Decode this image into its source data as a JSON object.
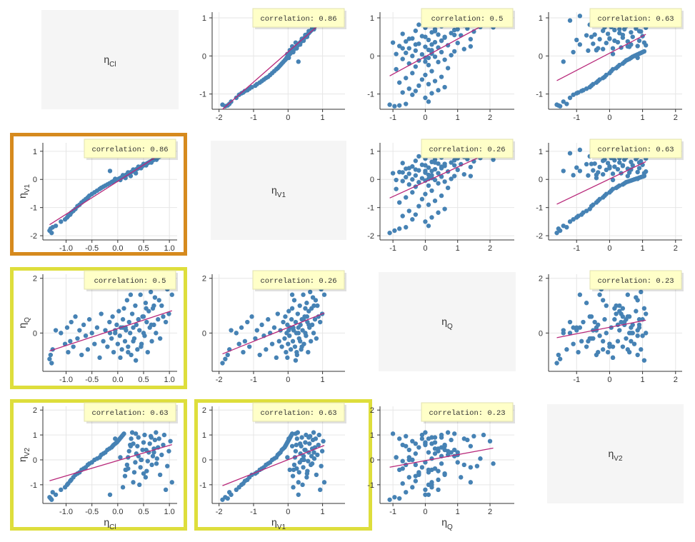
{
  "chart_data": {
    "type": "scatter",
    "title": "",
    "variables": [
      {
        "key": "Cl",
        "label": "η",
        "sub": "Cl",
        "range": [
          -1.45,
          1.15
        ],
        "ticks": [
          -1.0,
          -0.5,
          0.0,
          0.5,
          1.0
        ],
        "tick_labels": [
          "-1.0",
          "-0.5",
          "0.0",
          "0.5",
          "1.0"
        ],
        "y_range": [
          -1.4,
          1.15
        ],
        "y_ticks": [
          -1,
          0,
          1
        ],
        "y_tick_labels": [
          "-1",
          "0",
          "1"
        ]
      },
      {
        "key": "V1",
        "label": "η",
        "sub": "V1",
        "range": [
          -2.2,
          1.65
        ],
        "ticks": [
          -2,
          -1,
          0,
          1
        ],
        "tick_labels": [
          "-2",
          "-1",
          "0",
          "1"
        ],
        "y_range": [
          -2.15,
          1.3
        ],
        "y_ticks": [
          -2,
          -1,
          0,
          1
        ],
        "y_tick_labels": [
          "-2",
          "-1",
          "0",
          "1"
        ]
      },
      {
        "key": "Q",
        "label": "η",
        "sub": "Q",
        "range": [
          -1.4,
          2.75
        ],
        "ticks": [
          -1,
          0,
          1,
          2
        ],
        "tick_labels": [
          "-1",
          "0",
          "1",
          "2"
        ],
        "y_range": [
          -1.4,
          2.15
        ],
        "y_ticks": [
          0,
          2
        ],
        "y_tick_labels": [
          "0",
          "2"
        ]
      },
      {
        "key": "V2",
        "label": "η",
        "sub": "V2",
        "range": [
          -1.85,
          2.2
        ],
        "ticks": [
          -1,
          0,
          1,
          2
        ],
        "tick_labels": [
          "-1",
          "0",
          "1",
          "2"
        ],
        "y_range": [
          -1.75,
          2.15
        ],
        "y_ticks": [
          -1,
          0,
          1,
          2
        ],
        "y_tick_labels": [
          "-1",
          "0",
          "1",
          "2"
        ]
      }
    ],
    "correlations": {
      "Cl-V1": "correlation: 0.86",
      "Cl-Q": "correlation: 0.5",
      "Cl-V2": "correlation: 0.63",
      "V1-Q": "correlation: 0.26",
      "V1-V2": "correlation: 0.63",
      "Q-V2": "correlation: 0.23"
    },
    "highlighted": [
      {
        "row": 1,
        "col": 0,
        "color": "#d68a1e"
      },
      {
        "row": 2,
        "col": 0,
        "color": "#dede3c"
      },
      {
        "row": 3,
        "col": 0,
        "color": "#dede3c"
      },
      {
        "row": 3,
        "col": 1,
        "color": "#dede3c"
      }
    ],
    "series": [
      {
        "name": "Cl",
        "values": [
          -1.28,
          -1.32,
          -1.3,
          -1.2,
          -1.26,
          -1.1,
          -1.02,
          -0.98,
          -0.96,
          -0.92,
          -0.9,
          -0.86,
          -0.82,
          -0.78,
          -0.74,
          -0.7,
          -0.66,
          -0.62,
          -0.58,
          -0.55,
          -0.5,
          -0.45,
          -0.4,
          -0.35,
          -0.32,
          -0.28,
          -0.24,
          -0.2,
          -0.16,
          -0.12,
          -0.1,
          -0.08,
          -0.05,
          -0.02,
          0.0,
          0.02,
          0.04,
          0.06,
          0.08,
          0.1,
          0.12,
          0.14,
          0.16,
          0.18,
          0.2,
          0.22,
          0.24,
          0.26,
          0.28,
          0.3,
          0.32,
          0.34,
          0.36,
          0.38,
          0.4,
          0.42,
          0.44,
          0.46,
          0.48,
          0.5,
          0.52,
          0.54,
          0.56,
          0.58,
          0.6,
          0.62,
          0.64,
          0.66,
          0.68,
          0.7,
          0.72,
          0.74,
          0.76,
          0.78,
          0.8,
          0.82,
          0.85,
          0.88,
          0.9,
          0.93,
          0.96,
          0.99,
          1.02,
          1.05,
          0.05,
          0.15,
          0.25,
          0.35,
          -0.15,
          0.45,
          0.55,
          0.65,
          0.75,
          0.1,
          0.3,
          0.5,
          0.7,
          -0.05,
          0.2,
          0.4
        ]
      },
      {
        "name": "V1",
        "values": [
          -1.9,
          -1.82,
          -1.75,
          -1.65,
          -1.7,
          -1.5,
          -1.42,
          -1.35,
          -1.3,
          -1.25,
          -1.18,
          -1.12,
          -1.05,
          -0.95,
          -0.9,
          -0.82,
          -0.76,
          -0.7,
          -0.64,
          -0.58,
          -0.52,
          -0.46,
          -0.4,
          -0.34,
          -0.3,
          -0.26,
          -0.22,
          -0.18,
          -0.14,
          -0.1,
          -0.08,
          -0.06,
          -0.04,
          -0.02,
          0.0,
          0.02,
          0.04,
          0.06,
          0.08,
          0.1,
          0.12,
          0.14,
          0.16,
          0.18,
          0.2,
          0.22,
          0.24,
          0.26,
          0.28,
          0.3,
          0.32,
          0.34,
          0.36,
          0.38,
          0.4,
          0.42,
          0.44,
          0.46,
          0.48,
          0.5,
          0.52,
          0.54,
          0.56,
          0.58,
          0.6,
          0.62,
          0.64,
          0.66,
          0.68,
          0.7,
          0.72,
          0.74,
          0.76,
          0.78,
          0.8,
          0.82,
          0.85,
          0.88,
          0.9,
          0.93,
          0.96,
          0.99,
          1.02,
          1.05,
          -0.02,
          0.05,
          0.12,
          0.22,
          0.3,
          0.4,
          0.5,
          0.6,
          0.7,
          0.15,
          0.35,
          0.55,
          0.75,
          0.02,
          0.25,
          0.45
        ]
      },
      {
        "name": "Q",
        "values": [
          -1.1,
          -0.95,
          -0.8,
          0.1,
          -0.6,
          0.0,
          -0.4,
          0.2,
          -0.7,
          -0.3,
          0.4,
          -0.5,
          0.6,
          -0.2,
          0.1,
          -0.8,
          0.3,
          -0.1,
          -0.6,
          0.5,
          0.0,
          -0.4,
          0.2,
          -0.9,
          0.7,
          -0.3,
          0.1,
          -0.5,
          0.4,
          -0.2,
          0.6,
          -0.7,
          0.0,
          0.3,
          -0.4,
          0.8,
          -0.1,
          0.2,
          -0.6,
          0.5,
          0.9,
          -0.3,
          0.1,
          1.2,
          -0.5,
          0.4,
          0.0,
          -0.8,
          0.7,
          0.2,
          -0.2,
          1.0,
          0.3,
          -0.6,
          0.5,
          0.1,
          1.4,
          -0.4,
          0.6,
          0.0,
          -0.1,
          1.1,
          0.4,
          -0.7,
          0.8,
          0.2,
          1.5,
          -0.3,
          0.9,
          0.3,
          1.3,
          0.0,
          1.7,
          0.5,
          1.2,
          -0.2,
          1.0,
          0.6,
          1.8,
          0.4,
          1.6,
          0.7,
          2.0,
          1.4,
          -0.9,
          0.2,
          1.4,
          -1.0,
          0.0,
          -0.5,
          0.9,
          0.3,
          2.1,
          0.2,
          -0.3,
          0.6,
          1.0,
          0.1,
          -0.7,
          0.5
        ]
      },
      {
        "name": "V2",
        "values": [
          -1.6,
          -1.5,
          -1.55,
          -1.4,
          -1.3,
          -1.2,
          -1.1,
          -1.0,
          -0.95,
          -0.85,
          -0.8,
          -0.7,
          -0.6,
          -0.55,
          -0.5,
          -0.4,
          -0.35,
          -0.3,
          -0.2,
          -0.15,
          -0.1,
          0.0,
          0.05,
          0.1,
          0.2,
          0.25,
          0.3,
          0.4,
          0.45,
          0.5,
          0.55,
          0.6,
          0.65,
          0.7,
          0.75,
          0.8,
          0.85,
          0.9,
          0.95,
          1.0,
          1.05,
          -0.65,
          -0.4,
          -0.2,
          0.1,
          0.35,
          0.6,
          0.85,
          1.1,
          -0.9,
          -0.5,
          -0.1,
          0.25,
          0.55,
          0.9,
          -1.0,
          -0.3,
          0.0,
          0.4,
          0.7,
          1.0,
          -0.7,
          -0.45,
          -0.05,
          0.3,
          0.65,
          0.95,
          -0.2,
          0.15,
          0.45,
          0.8,
          1.1,
          0.05,
          0.5,
          0.85,
          -0.6,
          0.2,
          0.6,
          1.0,
          -1.2,
          -0.25,
          0.35,
          0.75,
          -0.9,
          0.1,
          -0.4,
          0.55,
          1.05,
          -1.4,
          0.0,
          0.4,
          0.9,
          -0.15,
          -1.1,
          0.65,
          -0.55,
          0.3,
          0.85,
          -0.35,
          0.15
        ]
      }
    ]
  }
}
